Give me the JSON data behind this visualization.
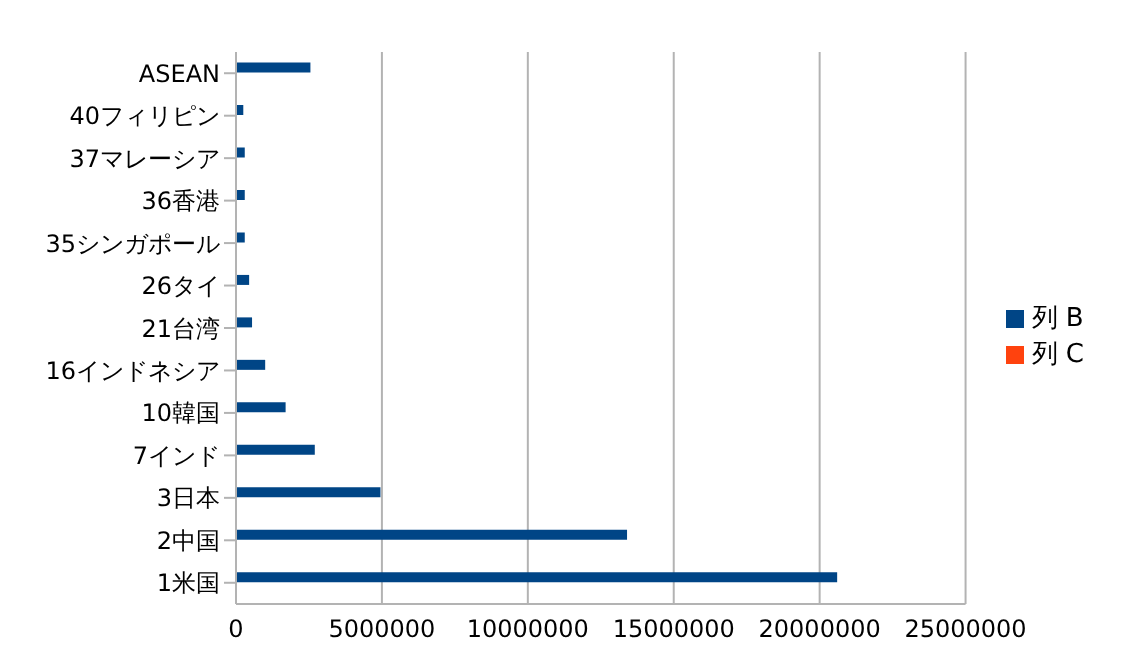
{
  "chart_data": {
    "type": "bar",
    "orientation": "horizontal",
    "categories": [
      "ASEAN",
      "40フィリピン",
      "37マレーシア",
      "36香港",
      "35シンガポール",
      "26タイ",
      "21台湾",
      "16インドネシア",
      "10韓国",
      "7インド",
      "3日本",
      "2中国",
      "1米国"
    ],
    "series": [
      {
        "name": "列 B",
        "color": "#004586",
        "values": [
          2550000,
          250000,
          300000,
          300000,
          300000,
          450000,
          550000,
          1000000,
          1700000,
          2700000,
          4950000,
          13400000,
          20600000
        ]
      },
      {
        "name": "列 C",
        "color": "#ff420e",
        "values": [
          null,
          null,
          null,
          null,
          null,
          null,
          null,
          null,
          null,
          null,
          null,
          null,
          null
        ]
      }
    ],
    "xlim": [
      0,
      25000000
    ],
    "xticks": [
      0,
      5000000,
      10000000,
      15000000,
      20000000,
      25000000
    ],
    "grid": "x",
    "legend": "right"
  }
}
